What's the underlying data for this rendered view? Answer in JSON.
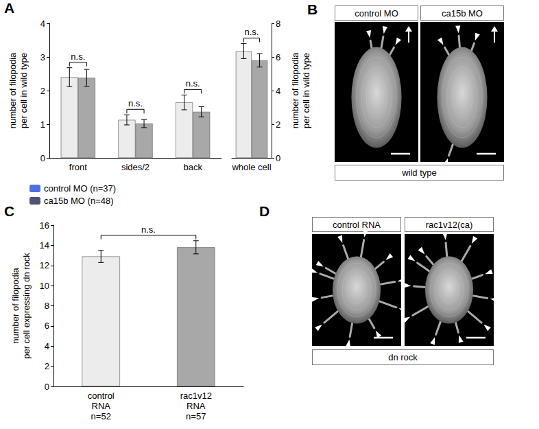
{
  "chart_data": [
    {
      "type": "bar",
      "panel_label": "A",
      "y_label": "number of filopodia\nper cell in wild type",
      "categories": [
        "front",
        "sides/2",
        "back"
      ],
      "series": [
        {
          "name": "control MO (n=37)",
          "color": "#ececec",
          "values": [
            2.4,
            1.13,
            1.65
          ],
          "errors": [
            0.28,
            0.15,
            0.22
          ]
        },
        {
          "name": "ca15b MO (n=48)",
          "color": "#a8a8a8",
          "values": [
            2.38,
            1.02,
            1.37
          ],
          "errors": [
            0.25,
            0.12,
            0.15
          ]
        }
      ],
      "ylim": [
        0,
        4
      ],
      "yticks": [
        0,
        1,
        2,
        3,
        4
      ],
      "grid": false,
      "legend": "lower left",
      "annotations": [
        {
          "text": "n.s.",
          "category": "front"
        },
        {
          "text": "n.s.",
          "category": "sides/2"
        },
        {
          "text": "n.s.",
          "category": "back"
        }
      ]
    },
    {
      "type": "bar",
      "y_label": "number of filopodia\nper cell in wild type",
      "categories": [
        "whole cell"
      ],
      "series": [
        {
          "name": "control MO (n=37)",
          "color": "#ececec",
          "values": [
            6.35
          ],
          "errors": [
            0.45
          ],
          "axis": "y2"
        },
        {
          "name": "ca15b MO (n=48)",
          "color": "#a8a8a8",
          "values": [
            5.8
          ],
          "errors": [
            0.4
          ],
          "axis": "y2"
        }
      ],
      "y2lim": [
        0,
        8
      ],
      "y2ticks": [
        0,
        2,
        4,
        6,
        8
      ],
      "grid": false,
      "annotations": [
        {
          "text": "n.s.",
          "category": "whole cell"
        }
      ]
    },
    {
      "type": "bar",
      "panel_label": "C",
      "y_label": "number of filopodia\nper cell expressing dn rock",
      "categories": [
        "control\nRNA\nn=52",
        "rac1v12\nRNA\nn=57"
      ],
      "values": [
        12.9,
        13.8
      ],
      "errors": [
        0.6,
        0.65
      ],
      "colors": [
        "#ececec",
        "#a8a8a8"
      ],
      "ylim": [
        0,
        16
      ],
      "yticks": [
        0,
        2,
        4,
        6,
        8,
        10,
        12,
        14,
        16
      ],
      "grid": false,
      "annotations": [
        {
          "text": "n.s."
        }
      ]
    }
  ],
  "image_panels": [
    {
      "panel_label": "B",
      "images": [
        "control MO",
        "ca15b MO"
      ],
      "condition": "wild type"
    },
    {
      "panel_label": "D",
      "images": [
        "control RNA",
        "rac1v12(ca)"
      ],
      "condition": "dn rock"
    }
  ]
}
